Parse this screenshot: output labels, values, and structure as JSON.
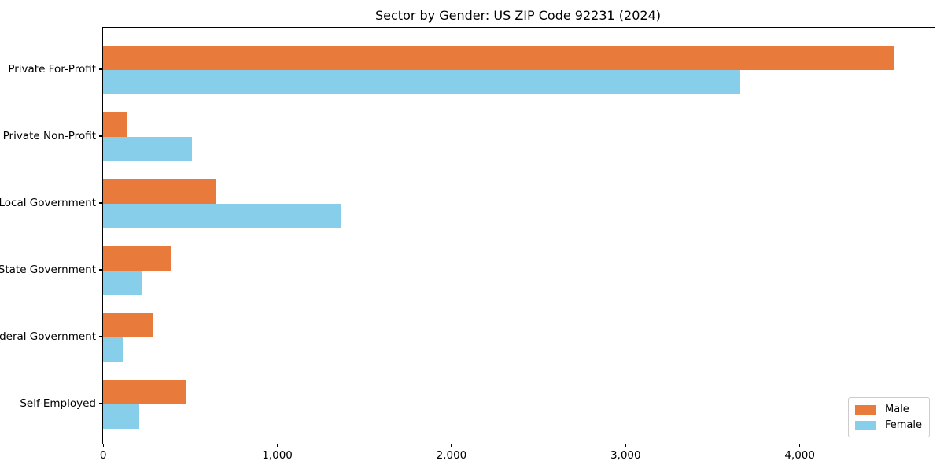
{
  "chart_data": {
    "type": "bar",
    "orientation": "horizontal",
    "title": "Sector by Gender: US ZIP Code 92231 (2024)",
    "categories": [
      "Private For-Profit",
      "Private Non-Profit",
      "Local Government",
      "State Government",
      "Federal Government",
      "Self-Employed"
    ],
    "series": [
      {
        "name": "Male",
        "color": "#E87A3C",
        "values": [
          4540,
          140,
          645,
          395,
          285,
          480
        ]
      },
      {
        "name": "Female",
        "color": "#87CEEB",
        "values": [
          3660,
          510,
          1370,
          220,
          115,
          210
        ]
      }
    ],
    "xlabel": "",
    "ylabel": "",
    "xlim": [
      0,
      4775
    ],
    "xticks": [
      0,
      1000,
      2000,
      3000,
      4000
    ],
    "xtick_labels": [
      "0",
      "1,000",
      "2,000",
      "3,000",
      "4,000"
    ],
    "grid": false,
    "legend_position": "lower right"
  }
}
